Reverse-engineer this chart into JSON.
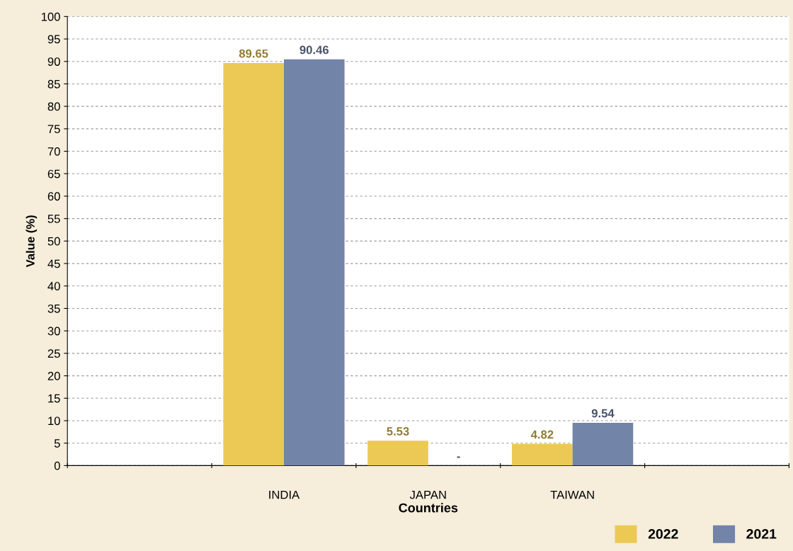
{
  "chart_data": {
    "type": "bar",
    "xlabel": "Countries",
    "ylabel": "Value (%)",
    "categories": [
      null,
      "INDIA",
      "JAPAN",
      "TAIWAN",
      null
    ],
    "series": [
      {
        "name": "2022",
        "color": "#ecc954",
        "values": [
          null,
          89.65,
          5.53,
          4.82,
          null
        ],
        "value_labels": [
          null,
          "89.65",
          "5.53",
          "4.82",
          null
        ]
      },
      {
        "name": "2021",
        "color": "#7284a8",
        "values": [
          null,
          90.46,
          null,
          9.54,
          null
        ],
        "value_labels": [
          null,
          "90.46",
          "-",
          "9.54",
          null
        ]
      }
    ],
    "ylim": [
      0,
      100
    ],
    "yticks": [
      0,
      5,
      10,
      15,
      20,
      25,
      30,
      35,
      40,
      45,
      50,
      55,
      60,
      65,
      70,
      75,
      80,
      85,
      90,
      95,
      100
    ],
    "grid": "y",
    "legend": "bottom right"
  }
}
